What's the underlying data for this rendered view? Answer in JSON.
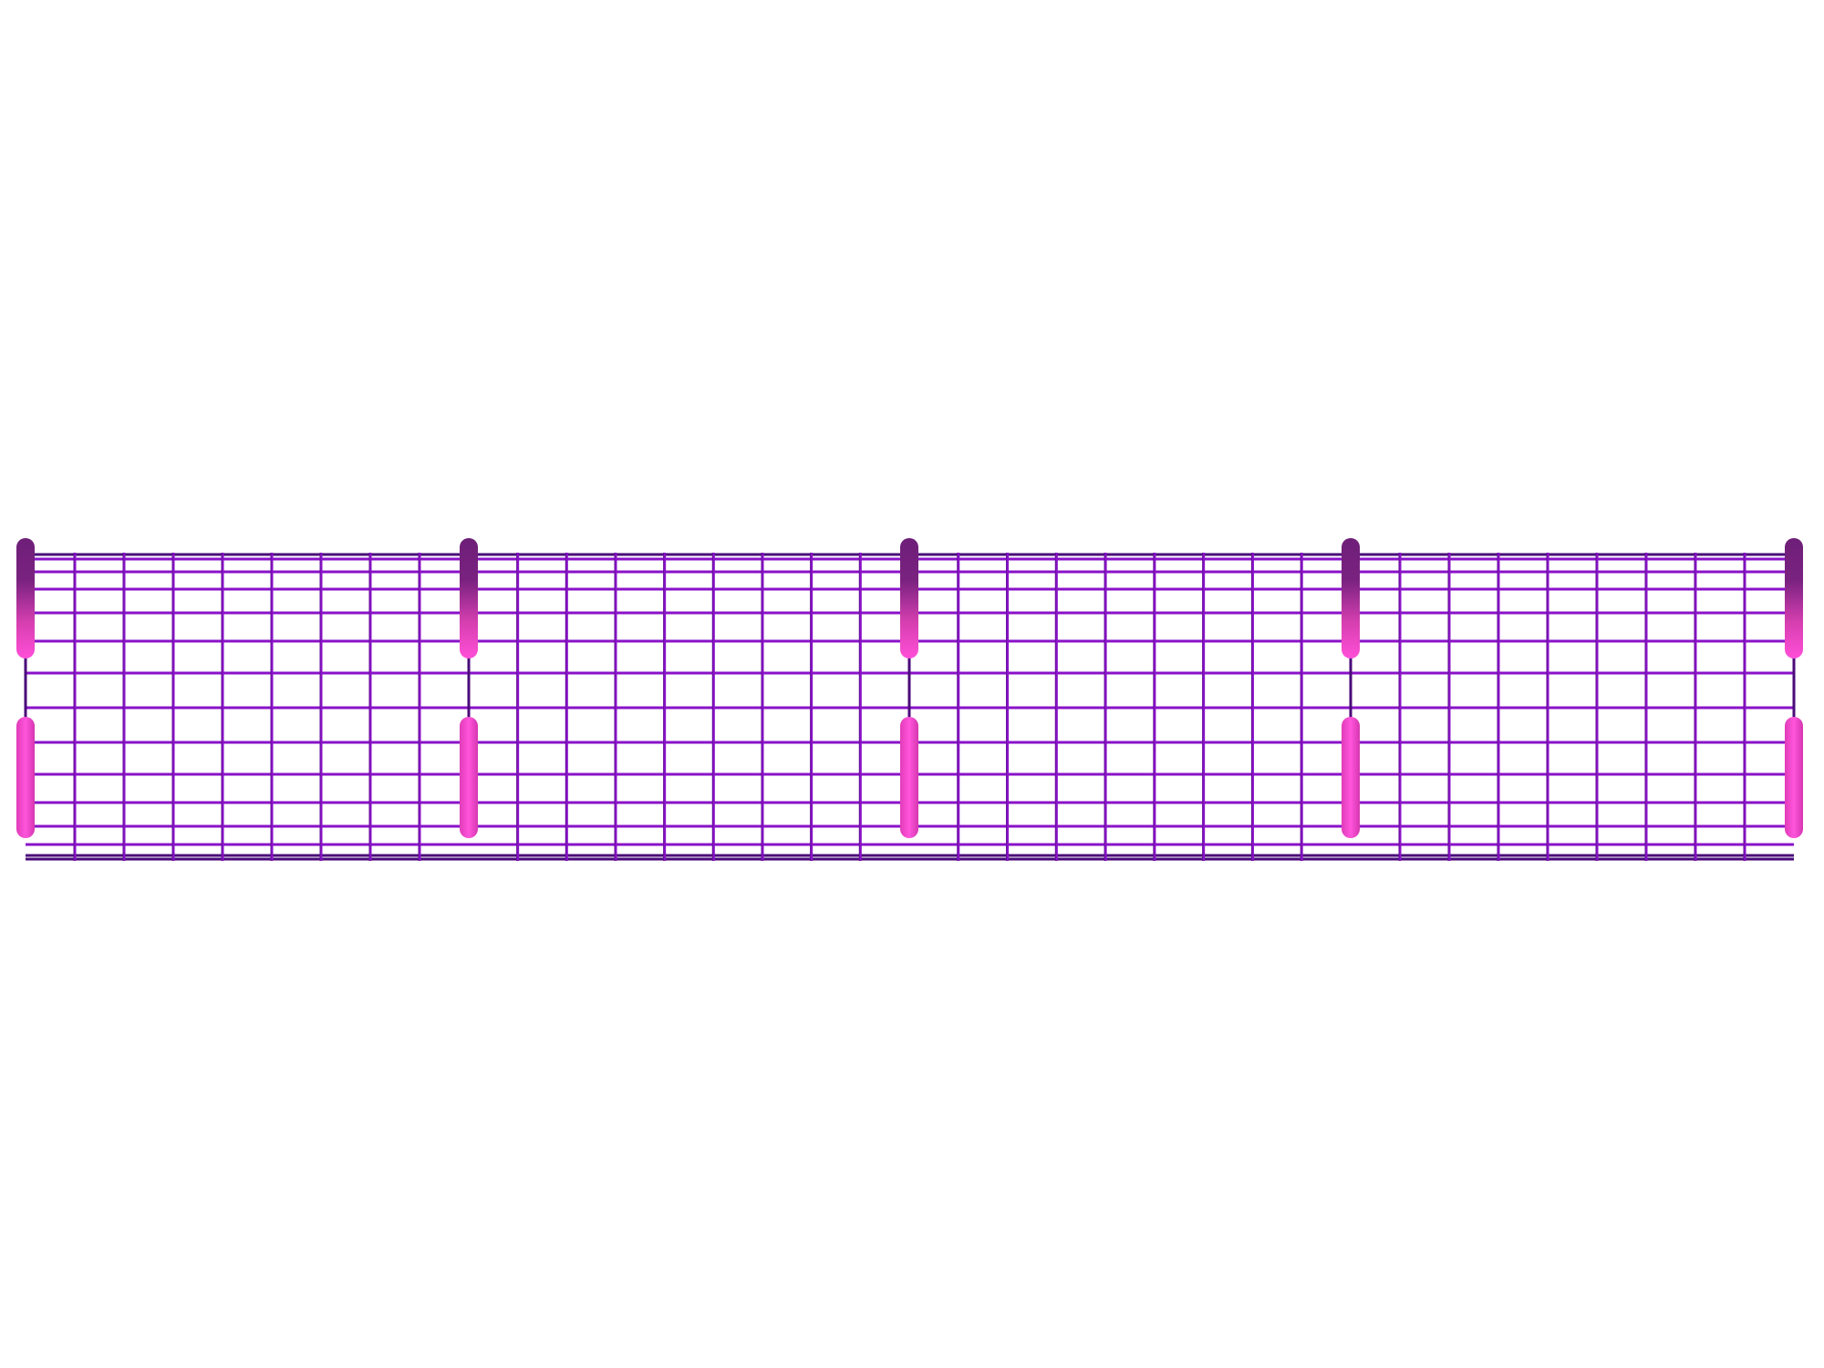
{
  "scene": {
    "subject": "wire-mesh-fence",
    "bays": 4,
    "posts": 5,
    "vertical_wires_per_bay": 8,
    "horizontal_wires": 15,
    "colors": {
      "background": "#ffffff",
      "wire": "#8a12c8",
      "wire_dark": "#4a0a7a",
      "post_top": "#6e1f78",
      "post_bottom": "#ff4fd8"
    }
  }
}
